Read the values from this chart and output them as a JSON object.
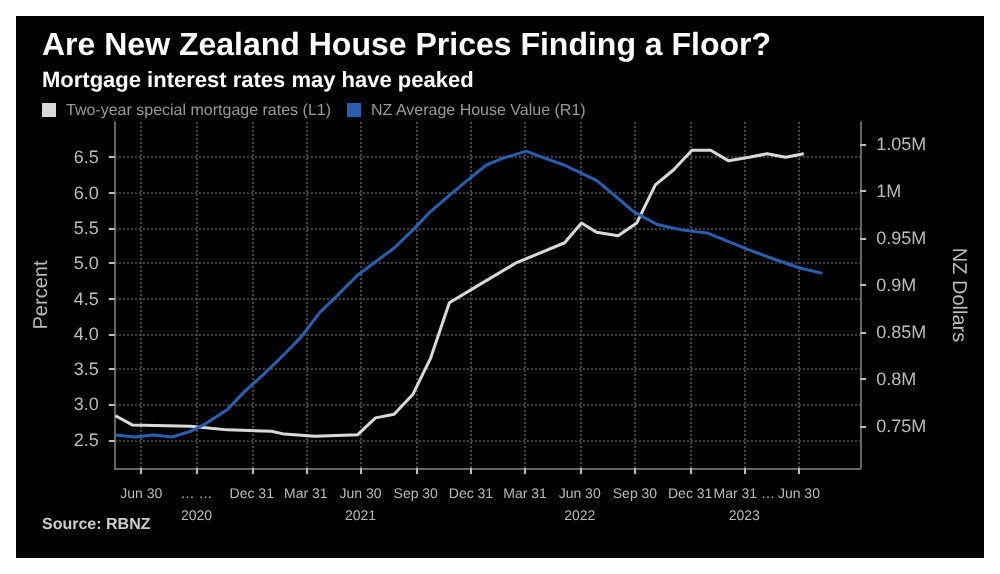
{
  "chart_data": {
    "type": "line",
    "title": "Are New Zealand House Prices Finding a Floor?",
    "subtitle": "Mortgage interest rates may have peaked",
    "ylabel": "Percent",
    "y2label": "NZ Dollars",
    "annotations": [
      "Source: RBNZ"
    ],
    "xlim": [
      "2020-05-17",
      "2023-10-10"
    ],
    "xticks": [
      {
        "value": "2020-06-30",
        "label": "Jun 30"
      },
      {
        "value": "2020-09-30",
        "label": "… …\n2020"
      },
      {
        "value": "2020-12-31",
        "label": "Dec 31"
      },
      {
        "value": "2021-03-31",
        "label": "Mar 31"
      },
      {
        "value": "2021-06-30",
        "label": "Jun 30\n2021"
      },
      {
        "value": "2021-09-30",
        "label": "Sep 30"
      },
      {
        "value": "2021-12-31",
        "label": "Dec 31"
      },
      {
        "value": "2022-03-31",
        "label": "Mar 31"
      },
      {
        "value": "2022-06-30",
        "label": "Jun 30\n2022"
      },
      {
        "value": "2022-09-30",
        "label": "Sep 30"
      },
      {
        "value": "2022-12-31",
        "label": "Dec 31"
      },
      {
        "value": "2023-03-31",
        "label": "Mar 31 …\n2023"
      },
      {
        "value": "2023-06-30",
        "label": "Jun 30"
      }
    ],
    "ylim": [
      2.1,
      7.0
    ],
    "yticks": [
      2.5,
      {
        "value": 3,
        "label": "3.0"
      },
      3.5,
      {
        "value": 4,
        "label": "4.0"
      },
      4.5,
      {
        "value": 5,
        "label": "5.0"
      },
      5.5,
      {
        "value": 6,
        "label": "6.0"
      },
      6.5
    ],
    "y2lim": [
      705000,
      1073000
    ],
    "y2ticks": [
      {
        "value": 750000,
        "label": "0.75M"
      },
      {
        "value": 800000,
        "label": "0.8M"
      },
      {
        "value": 850000,
        "label": "0.85M"
      },
      {
        "value": 900000,
        "label": "0.9M"
      },
      {
        "value": 950000,
        "label": "0.95M"
      },
      {
        "value": 1000000,
        "label": "1M"
      },
      {
        "value": 1050000,
        "label": "1.05M"
      }
    ],
    "grid": true,
    "legend": "top left",
    "marker": "none",
    "line_style": "solid",
    "series": [
      {
        "name": "Two-year special mortgage rates (L1)",
        "color": "#d9d9d9",
        "x": [
          "2020-05-18",
          "2020-06-15",
          "2020-09-20",
          "2020-11-20",
          "2021-02-02",
          "2021-02-23",
          "2021-04-15",
          "2021-06-25",
          "2021-07-25",
          "2021-08-25",
          "2021-09-25",
          "2021-10-25",
          "2021-11-25",
          "2022-01-15",
          "2022-03-15",
          "2022-06-05",
          "2022-07-03",
          "2022-07-28",
          "2022-09-02",
          "2022-10-03",
          "2022-11-03",
          "2022-12-03",
          "2023-01-03",
          "2023-02-03",
          "2023-03-05",
          "2023-04-08",
          "2023-05-08",
          "2023-06-08",
          "2023-07-08"
        ],
        "values": [
          2.84,
          2.71,
          2.69,
          2.64,
          2.62,
          2.58,
          2.55,
          2.57,
          2.81,
          2.86,
          3.14,
          3.66,
          4.44,
          4.7,
          5.0,
          5.29,
          5.57,
          5.44,
          5.39,
          5.57,
          6.11,
          6.32,
          6.6,
          6.6,
          6.45,
          6.5,
          6.55,
          6.5,
          6.55
        ]
      },
      {
        "name": "NZ Average House Value (R1)",
        "color": "#2a5fb0",
        "axis": "y2",
        "x": [
          "2020-05-18",
          "2020-06-20",
          "2020-07-20",
          "2020-08-20",
          "2020-09-20",
          "2020-10-15",
          "2020-11-20",
          "2020-12-20",
          "2021-01-22",
          "2021-02-23",
          "2021-03-24",
          "2021-04-24",
          "2021-05-25",
          "2021-06-25",
          "2021-08-25",
          "2021-09-25",
          "2021-10-25",
          "2021-11-25",
          "2021-12-25",
          "2022-01-25",
          "2022-02-20",
          "2022-04-02",
          "2022-04-27",
          "2022-06-05",
          "2022-07-28",
          "2022-08-27",
          "2022-09-27",
          "2022-11-06",
          "2022-12-19",
          "2023-01-28",
          "2023-02-28",
          "2023-04-08",
          "2023-05-20",
          "2023-06-30",
          "2023-08-08"
        ],
        "values": [
          740000,
          738000,
          740000,
          738000,
          744000,
          752000,
          767000,
          787000,
          806000,
          826000,
          845000,
          871000,
          890000,
          910000,
          939000,
          958000,
          978000,
          995000,
          1011000,
          1027000,
          1034000,
          1042000,
          1036000,
          1027000,
          1011000,
          995000,
          978000,
          964000,
          958000,
          955000,
          947000,
          937000,
          927000,
          918000,
          912000
        ]
      }
    ]
  }
}
